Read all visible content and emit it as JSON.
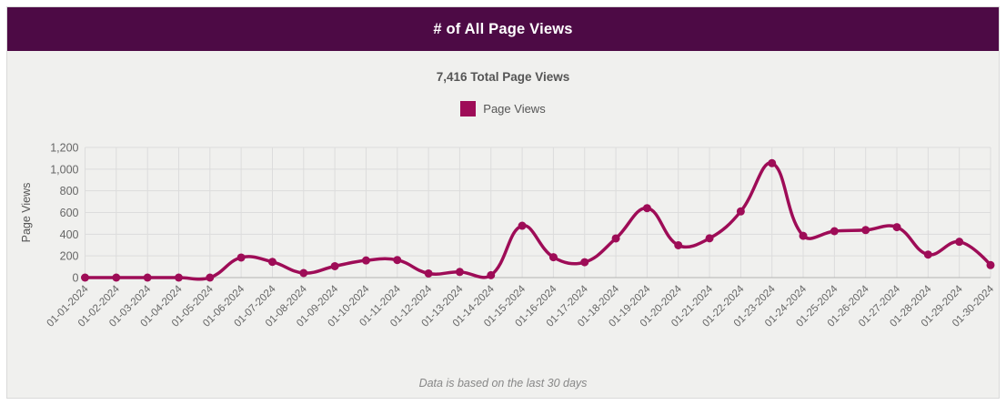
{
  "header": {
    "title": "# of All Page Views",
    "background_color": "#4d0a45",
    "text_color": "#ffffff"
  },
  "summary": {
    "total_label": "7,416 Total Page Views"
  },
  "legend": {
    "label": "Page Views",
    "swatch_color": "#9e0c57"
  },
  "footer": {
    "note": "Data is based on the last 30 days"
  },
  "chart_data": {
    "type": "line",
    "title": "# of All Page Views",
    "subtitle": "7,416 Total Page Views",
    "total_page_views": 7416,
    "xlabel": "",
    "ylabel": "Page Views",
    "x": [
      "01-01-2024",
      "01-02-2024",
      "01-03-2024",
      "01-04-2024",
      "01-05-2024",
      "01-06-2024",
      "01-07-2024",
      "01-08-2024",
      "01-09-2024",
      "01-10-2024",
      "01-11-2024",
      "01-12-2024",
      "01-13-2024",
      "01-14-2024",
      "01-15-2024",
      "01-16-2024",
      "01-17-2024",
      "01-18-2024",
      "01-19-2024",
      "01-20-2024",
      "01-21-2024",
      "01-22-2024",
      "01-23-2024",
      "01-24-2024",
      "01-25-2024",
      "01-26-2024",
      "01-27-2024",
      "01-28-2024",
      "01-29-2024",
      "01-30-2024"
    ],
    "series": [
      {
        "name": "Page Views",
        "values": [
          0,
          0,
          0,
          0,
          0,
          185,
          145,
          42,
          105,
          158,
          162,
          38,
          52,
          22,
          478,
          188,
          142,
          361,
          640,
          298,
          362,
          610,
          1055,
          385,
          428,
          438,
          465,
          212,
          330,
          115
        ]
      }
    ],
    "ylim": [
      0,
      1200
    ],
    "ytick_step": 200,
    "ytick_labels": [
      "0",
      "200",
      "400",
      "600",
      "800",
      "1,000",
      "1,200"
    ],
    "grid": true,
    "legend_position": "top",
    "line_color": "#9e0c57",
    "grid_color": "#dcdcdc",
    "axis_line_color": "#b3b3b3",
    "tick_text_color": "#666666",
    "line_tension": 0.4,
    "point_radius": 4.5
  }
}
